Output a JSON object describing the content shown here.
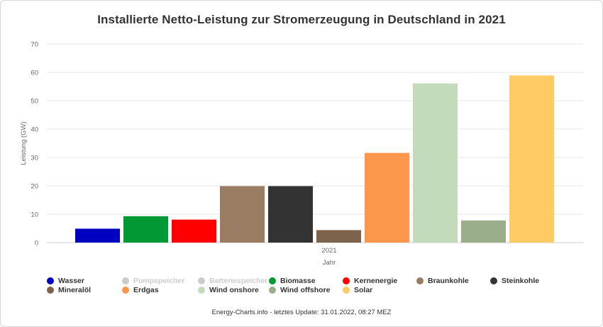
{
  "chart_data": {
    "type": "bar",
    "title": "Installierte Netto-Leistung zur Stromerzeugung in Deutschland in 2021",
    "xlabel": "Jahr",
    "ylabel": "Leistung (GW)",
    "categories": [
      "2021"
    ],
    "ylim": [
      0,
      70
    ],
    "yticks": [
      0,
      10,
      20,
      30,
      40,
      50,
      60,
      70
    ],
    "grid": true,
    "legend_position": "bottom",
    "series": [
      {
        "name": "Wasser",
        "color": "#0000c0",
        "visible": true,
        "values": [
          4.9
        ]
      },
      {
        "name": "Pumpspeicher",
        "color": "#cccccc",
        "visible": false,
        "values": [
          null
        ]
      },
      {
        "name": "Batteriespeicher",
        "color": "#cccccc",
        "visible": false,
        "values": [
          null
        ]
      },
      {
        "name": "Biomasse",
        "color": "#009933",
        "visible": true,
        "values": [
          9.3
        ]
      },
      {
        "name": "Kernenergie",
        "color": "#ff0000",
        "visible": true,
        "values": [
          8.1
        ]
      },
      {
        "name": "Braunkohle",
        "color": "#997c61",
        "visible": true,
        "values": [
          19.9
        ]
      },
      {
        "name": "Steinkohle",
        "color": "#333333",
        "visible": true,
        "values": [
          19.9
        ]
      },
      {
        "name": "Mineralöl",
        "color": "#7e634c",
        "visible": true,
        "values": [
          4.4
        ]
      },
      {
        "name": "Erdgas",
        "color": "#fc974c",
        "visible": true,
        "values": [
          31.6
        ]
      },
      {
        "name": "Wind onshore",
        "color": "#c4dbbb",
        "visible": true,
        "values": [
          56.1
        ]
      },
      {
        "name": "Wind offshore",
        "color": "#9bae8b",
        "visible": true,
        "values": [
          7.8
        ]
      },
      {
        "name": "Solar",
        "color": "#ffcb62",
        "visible": true,
        "values": [
          58.9
        ]
      }
    ]
  },
  "footer": "Energy-Charts.info - letztes Update: 31.01.2022, 08:27 MEZ"
}
